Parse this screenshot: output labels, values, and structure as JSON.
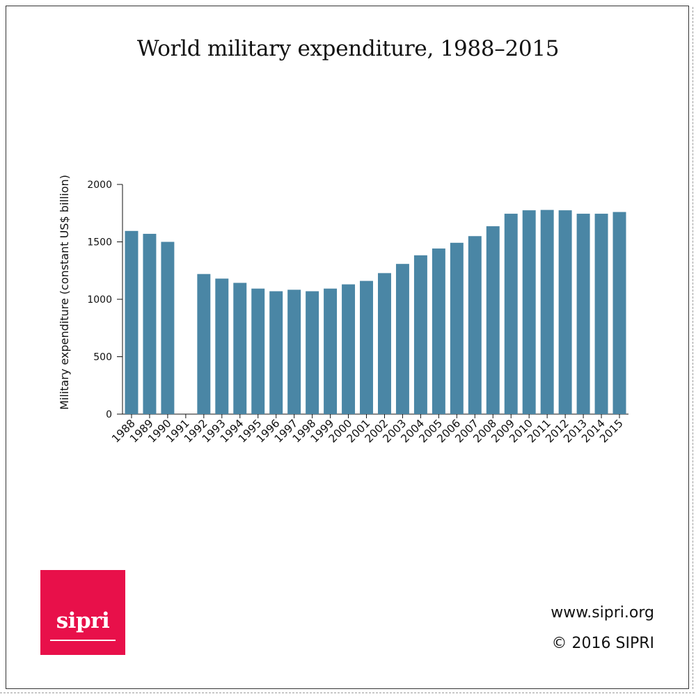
{
  "chart_data": {
    "type": "bar",
    "title": "World military expenditure, 1988–2015",
    "xlabel": "",
    "ylabel": "Military expenditure (constant US$ billion)",
    "ylim": [
      0,
      2000
    ],
    "yticks": [
      0,
      500,
      1000,
      1500,
      2000
    ],
    "categories": [
      "1988",
      "1989",
      "1990",
      "1991",
      "1992",
      "1993",
      "1994",
      "1995",
      "1996",
      "1997",
      "1998",
      "1999",
      "2000",
      "2001",
      "2002",
      "2003",
      "2004",
      "2005",
      "2006",
      "2007",
      "2008",
      "2009",
      "2010",
      "2011",
      "2012",
      "2013",
      "2014",
      "2015"
    ],
    "values": [
      1595,
      1570,
      1500,
      null,
      1220,
      1180,
      1143,
      1093,
      1070,
      1083,
      1070,
      1093,
      1130,
      1160,
      1228,
      1308,
      1383,
      1442,
      1492,
      1550,
      1636,
      1745,
      1775,
      1778,
      1775,
      1745,
      1745,
      1760
    ],
    "colors": {
      "bar": "#4a86a5",
      "axis": "#111111"
    }
  },
  "logo": {
    "text": "sipri",
    "color": "#e8104a"
  },
  "footer": {
    "website": "www.sipri.org",
    "copyright": "© 2016 SIPRI"
  }
}
